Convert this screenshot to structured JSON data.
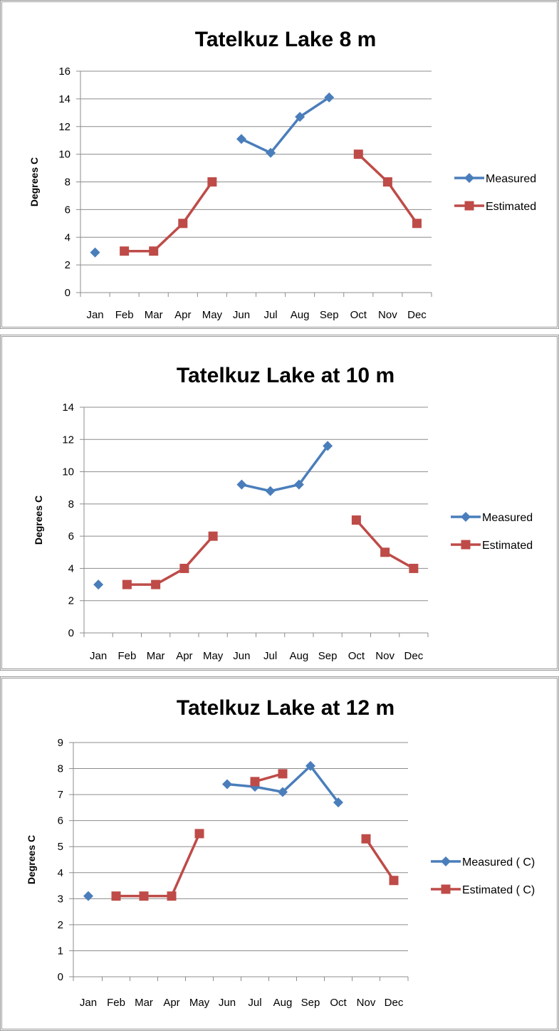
{
  "chart_data": [
    {
      "type": "line",
      "title": "Tatelkuz Lake 8 m",
      "ylabel": "Degrees C",
      "xlabel": "",
      "categories": [
        "Jan",
        "Feb",
        "Mar",
        "Apr",
        "May",
        "Jun",
        "Jul",
        "Aug",
        "Sep",
        "Oct",
        "Nov",
        "Dec"
      ],
      "ylim": [
        0,
        16
      ],
      "ytick_step": 2,
      "yticks": [
        "0",
        "2",
        "4",
        "6",
        "8",
        "10",
        "12",
        "14",
        "16"
      ],
      "grid": true,
      "legend_position": "right",
      "series": [
        {
          "name": "Measured",
          "color": "#4a7ebb",
          "marker": "diamond",
          "values": [
            2.9,
            null,
            null,
            null,
            null,
            11.1,
            10.1,
            12.7,
            14.1,
            null,
            null,
            null
          ]
        },
        {
          "name": "Estimated",
          "color": "#be4b48",
          "marker": "square",
          "values": [
            null,
            3,
            3,
            5,
            8,
            null,
            null,
            null,
            null,
            10,
            8,
            5
          ]
        }
      ]
    },
    {
      "type": "line",
      "title": "Tatelkuz Lake at 10 m",
      "ylabel": "Degrees C",
      "xlabel": "",
      "categories": [
        "Jan",
        "Feb",
        "Mar",
        "Apr",
        "May",
        "Jun",
        "Jul",
        "Aug",
        "Sep",
        "Oct",
        "Nov",
        "Dec"
      ],
      "ylim": [
        0,
        14
      ],
      "ytick_step": 2,
      "yticks": [
        "0",
        "2",
        "4",
        "6",
        "8",
        "10",
        "12",
        "14"
      ],
      "grid": true,
      "legend_position": "right",
      "series": [
        {
          "name": "Measured",
          "color": "#4a7ebb",
          "marker": "diamond",
          "values": [
            3,
            null,
            null,
            null,
            null,
            9.2,
            8.8,
            9.2,
            11.6,
            null,
            null,
            null
          ]
        },
        {
          "name": "Estimated",
          "color": "#be4b48",
          "marker": "square",
          "values": [
            null,
            3,
            3,
            4,
            6,
            null,
            null,
            null,
            null,
            7,
            5,
            4
          ]
        }
      ]
    },
    {
      "type": "line",
      "title": "Tatelkuz Lake at 12 m",
      "ylabel": "Degrees C",
      "xlabel": "",
      "categories": [
        "Jan",
        "Feb",
        "Mar",
        "Apr",
        "May",
        "Jun",
        "Jul",
        "Aug",
        "Sep",
        "Oct",
        "Nov",
        "Dec"
      ],
      "ylim": [
        0,
        9
      ],
      "ytick_step": 1,
      "yticks": [
        "0",
        "1",
        "2",
        "3",
        "4",
        "5",
        "6",
        "7",
        "8",
        "9"
      ],
      "grid": true,
      "legend_position": "right",
      "series": [
        {
          "name": "Measured ( C)",
          "color": "#4a7ebb",
          "marker": "diamond",
          "values": [
            3.1,
            null,
            null,
            null,
            null,
            7.4,
            7.3,
            7.1,
            8.1,
            6.7,
            null,
            null
          ]
        },
        {
          "name": "Estimated ( C)",
          "color": "#be4b48",
          "marker": "square",
          "values": [
            null,
            3.1,
            3.1,
            3.1,
            5.5,
            null,
            7.5,
            7.8,
            null,
            null,
            5.3,
            3.7
          ]
        }
      ]
    }
  ]
}
